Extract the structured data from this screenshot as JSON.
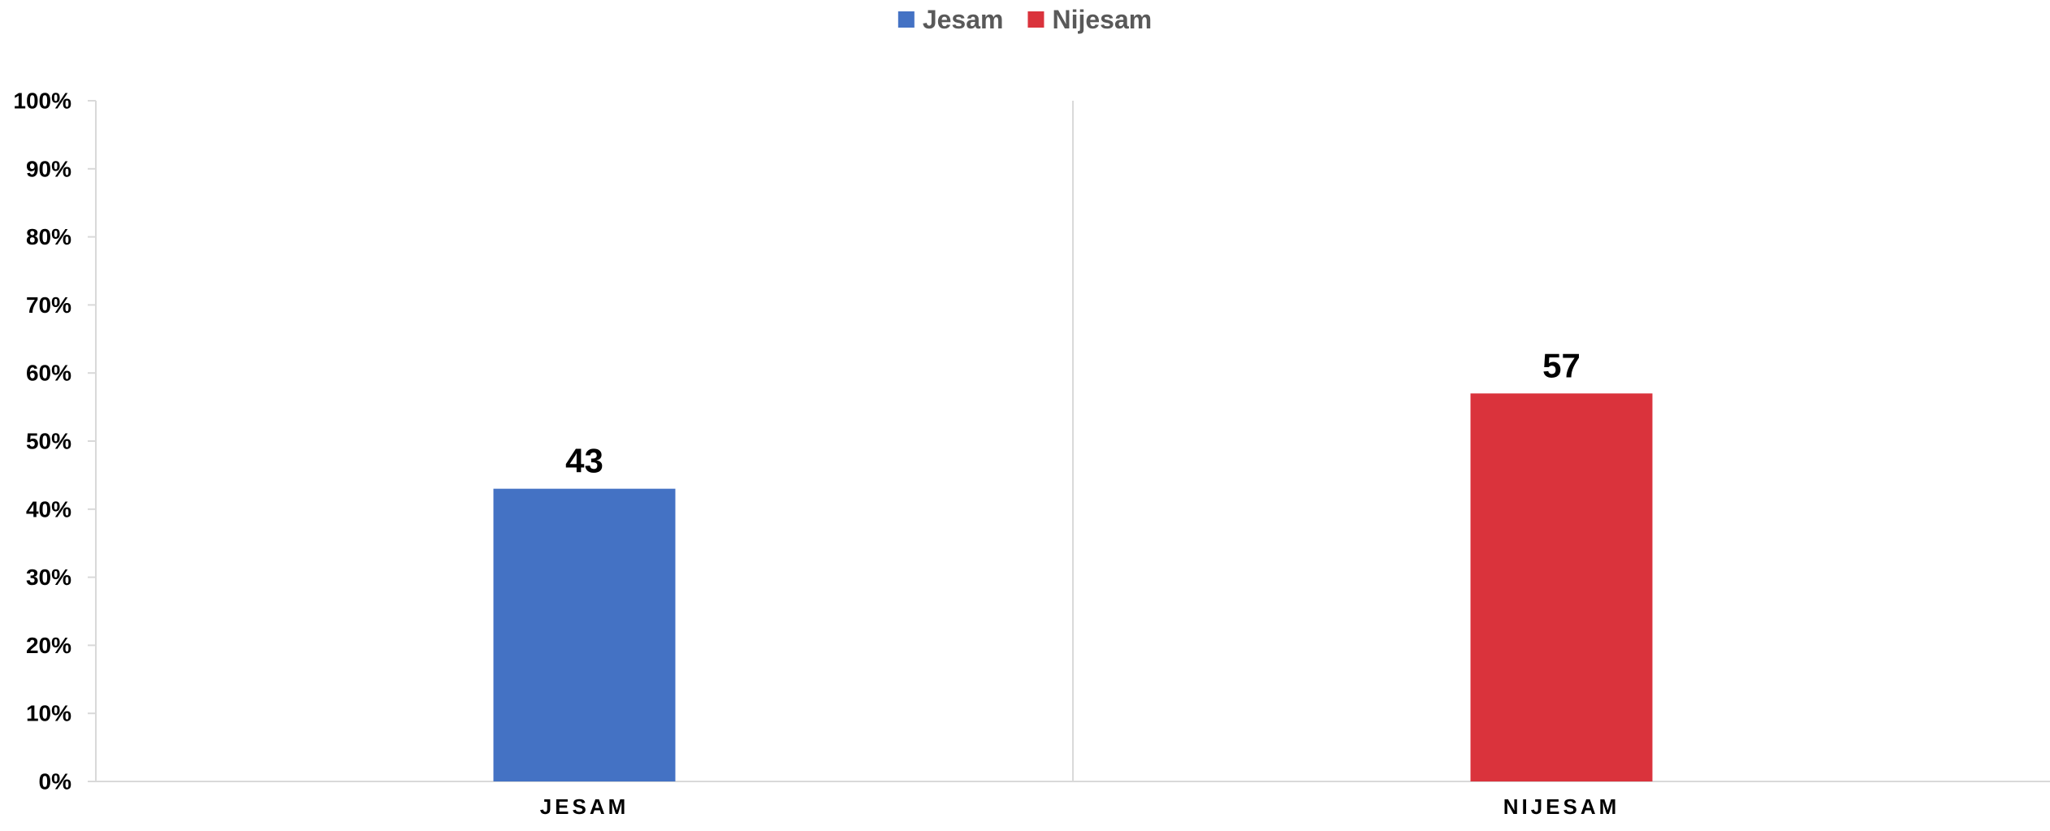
{
  "chart_data": {
    "type": "bar",
    "categories": [
      "JESAM",
      "NIJESAM"
    ],
    "series": [
      {
        "name": "Jesam",
        "values": [
          43,
          null
        ],
        "color": "#4472C4"
      },
      {
        "name": "Nijesam",
        "values": [
          null,
          57
        ],
        "color": "#DA333C"
      }
    ],
    "data_labels": [
      "43",
      "57"
    ],
    "title": "",
    "xlabel": "",
    "ylabel": "",
    "ylim": [
      0,
      100
    ],
    "y_ticks": [
      "0%",
      "10%",
      "20%",
      "30%",
      "40%",
      "50%",
      "60%",
      "70%",
      "80%",
      "90%",
      "100%"
    ],
    "legend": {
      "position": "top-center",
      "entries": [
        "Jesam",
        "Nijesam"
      ]
    },
    "grid": false,
    "category_separator": true
  }
}
